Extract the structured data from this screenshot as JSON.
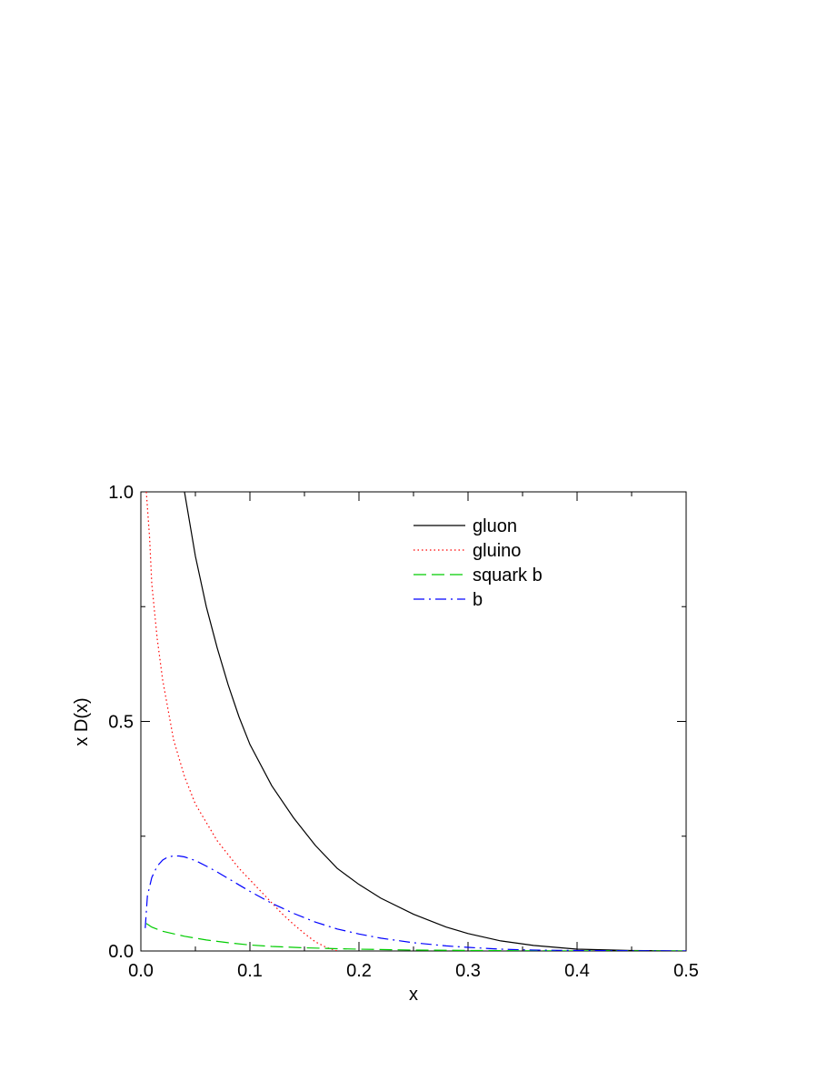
{
  "chart_data": {
    "type": "line",
    "title": "",
    "xlabel": "x",
    "ylabel": "x D(x)",
    "xlim": [
      0.0,
      0.5
    ],
    "ylim": [
      0.0,
      1.0
    ],
    "grid": false,
    "legend_position": "top-right",
    "x_ticks": [
      0.0,
      0.1,
      0.2,
      0.3,
      0.4,
      0.5
    ],
    "x_tick_labels": [
      "0.0",
      "0.1",
      "0.2",
      "0.3",
      "0.4",
      "0.5"
    ],
    "y_ticks": [
      0.0,
      0.5,
      1.0
    ],
    "y_tick_labels": [
      "0.0",
      "0.5",
      "1.0"
    ],
    "series": [
      {
        "name": "gluon",
        "color": "#000000",
        "dash": "solid",
        "x": [
          0.04,
          0.05,
          0.06,
          0.07,
          0.08,
          0.09,
          0.1,
          0.12,
          0.14,
          0.16,
          0.18,
          0.2,
          0.22,
          0.25,
          0.28,
          0.3,
          0.33,
          0.36,
          0.4,
          0.45,
          0.5
        ],
        "y": [
          1.0,
          0.86,
          0.75,
          0.66,
          0.58,
          0.51,
          0.45,
          0.36,
          0.29,
          0.23,
          0.18,
          0.145,
          0.115,
          0.08,
          0.052,
          0.038,
          0.022,
          0.012,
          0.004,
          0.001,
          0.0
        ]
      },
      {
        "name": "gluino",
        "color": "#ff0000",
        "dash": "dotted",
        "x": [
          0.005,
          0.008,
          0.01,
          0.015,
          0.02,
          0.03,
          0.04,
          0.05,
          0.06,
          0.07,
          0.08,
          0.09,
          0.1,
          0.11,
          0.12,
          0.13,
          0.14,
          0.15,
          0.16,
          0.17,
          0.18
        ],
        "y": [
          1.0,
          0.9,
          0.8,
          0.68,
          0.59,
          0.46,
          0.38,
          0.32,
          0.28,
          0.24,
          0.21,
          0.18,
          0.155,
          0.13,
          0.105,
          0.08,
          0.058,
          0.038,
          0.02,
          0.008,
          0.0
        ]
      },
      {
        "name": "squark b",
        "color": "#00cc00",
        "dash": "dashed",
        "x": [
          0.005,
          0.01,
          0.02,
          0.04,
          0.06,
          0.08,
          0.1,
          0.12,
          0.15,
          0.18,
          0.2,
          0.25,
          0.3,
          0.35,
          0.4,
          0.45,
          0.5
        ],
        "y": [
          0.06,
          0.052,
          0.043,
          0.032,
          0.024,
          0.018,
          0.013,
          0.01,
          0.007,
          0.005,
          0.004,
          0.002,
          0.0012,
          0.0006,
          0.0002,
          0.0001,
          0.0
        ]
      },
      {
        "name": "b",
        "color": "#0000ff",
        "dash": "dashdot",
        "x": [
          0.004,
          0.006,
          0.01,
          0.015,
          0.02,
          0.025,
          0.03,
          0.035,
          0.04,
          0.05,
          0.06,
          0.07,
          0.08,
          0.09,
          0.1,
          0.12,
          0.14,
          0.16,
          0.18,
          0.2,
          0.22,
          0.25,
          0.28,
          0.3,
          0.33,
          0.36,
          0.4,
          0.45,
          0.5
        ],
        "y": [
          0.05,
          0.12,
          0.16,
          0.185,
          0.198,
          0.205,
          0.207,
          0.207,
          0.205,
          0.197,
          0.185,
          0.172,
          0.158,
          0.144,
          0.13,
          0.104,
          0.082,
          0.063,
          0.048,
          0.037,
          0.028,
          0.018,
          0.011,
          0.008,
          0.004,
          0.002,
          0.001,
          0.0003,
          0.0
        ]
      }
    ]
  }
}
